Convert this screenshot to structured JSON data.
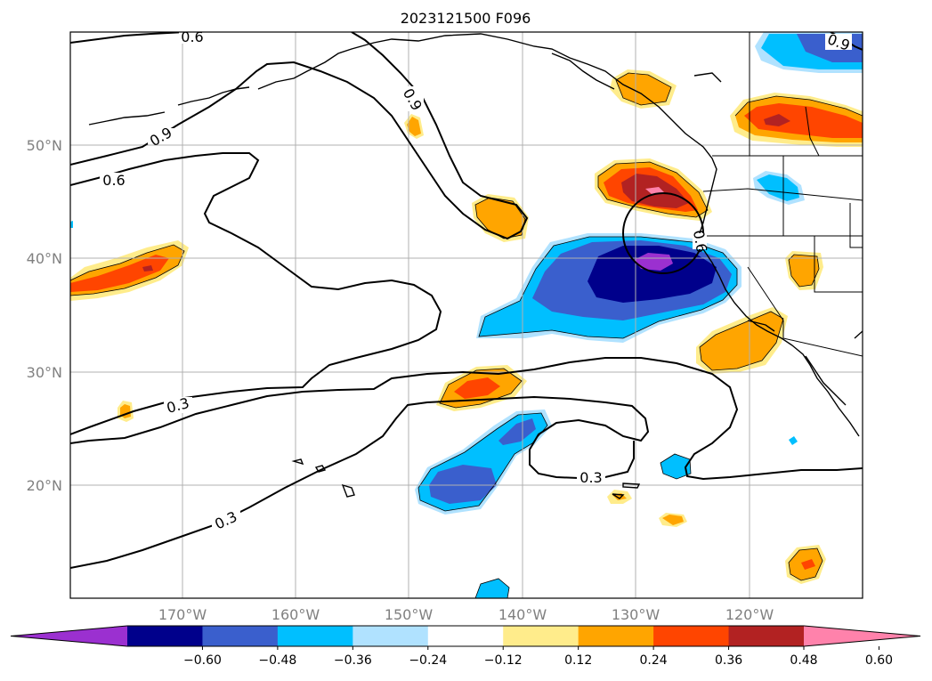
{
  "title": "2023121500 F096",
  "lat_labels": [
    "50°N",
    "40°N",
    "30°N",
    "20°N"
  ],
  "lon_labels": [
    "170°W",
    "160°W",
    "150°W",
    "140°W",
    "130°W",
    "120°W"
  ],
  "contour_labels": [
    "0.6",
    "0.9",
    "0.6",
    "0.9",
    "0.9",
    "0.3",
    "0.3",
    "0.3",
    "0.6"
  ],
  "colorbar": {
    "colors": [
      "#9b30d0",
      "#00008b",
      "#3a5fcd",
      "#00bfff",
      "#b0e2ff",
      "#ffffff",
      "#ffec8b",
      "#ffa500",
      "#ff4500",
      "#b22222",
      "#ff82ab"
    ],
    "ticks": [
      "−0.60",
      "−0.48",
      "−0.36",
      "−0.24",
      "−0.12",
      "0.12",
      "0.24",
      "0.36",
      "0.48",
      "0.60"
    ]
  }
}
